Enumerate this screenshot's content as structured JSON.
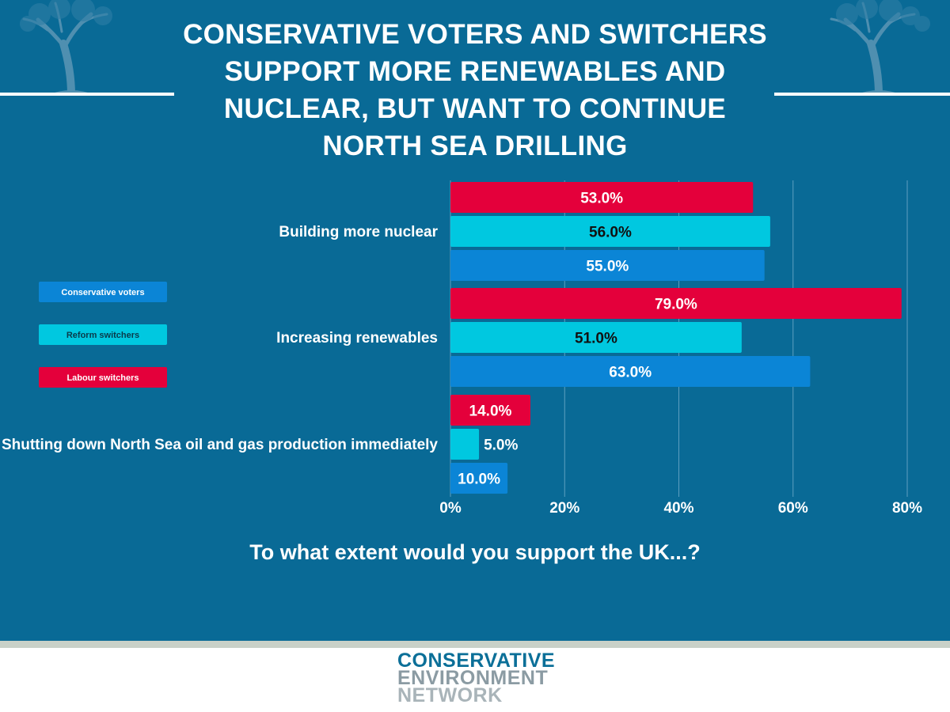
{
  "title": "CONSERVATIVE VOTERS AND SWITCHERS SUPPORT MORE RENEWABLES AND NUCLEAR, BUT WANT TO CONTINUE NORTH SEA DRILLING",
  "colors": {
    "background": "#096a96",
    "conservative": "#0b85d6",
    "reform": "#00c8e0",
    "labour": "#e4003b",
    "white": "#ffffff"
  },
  "chart_data": {
    "type": "bar",
    "orientation": "horizontal",
    "categories": [
      "Building more nuclear",
      "Increasing renewables",
      "Shutting down North Sea oil and gas production immediately"
    ],
    "series": [
      {
        "name": "Labour switchers",
        "values": [
          53.0,
          79.0,
          14.0
        ]
      },
      {
        "name": "Reform switchers",
        "values": [
          56.0,
          51.0,
          5.0
        ]
      },
      {
        "name": "Conservative voters",
        "values": [
          55.0,
          63.0,
          10.0
        ]
      }
    ],
    "legend": [
      "Conservative voters",
      "Reform switchers",
      "Labour switchers"
    ],
    "value_labels": [
      [
        "53.0%",
        "79.0%",
        "14.0%"
      ],
      [
        "56.0%",
        "51.0%",
        "5.0%"
      ],
      [
        "55.0%",
        "63.0%",
        "10.0%"
      ]
    ],
    "xlim": [
      0,
      80
    ],
    "xticks": [
      0,
      20,
      40,
      60,
      80
    ],
    "xtick_labels": [
      "0%",
      "20%",
      "40%",
      "60%",
      "80%"
    ],
    "xlabel": "To what extent would you support the UK...?",
    "grid": "vertical",
    "legend_position": "left"
  },
  "footer": {
    "logo_line_1": "CONSERVATIVE",
    "logo_line_2": "ENVIRONMENT",
    "logo_line_3": "NETWORK"
  }
}
